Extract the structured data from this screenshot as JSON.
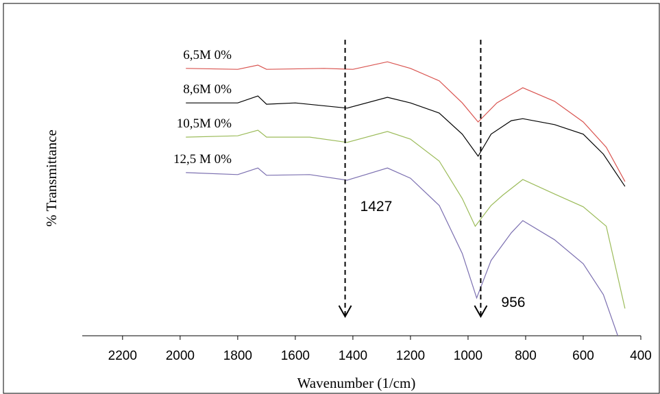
{
  "chart_data": {
    "type": "line",
    "x_label": "Wavenumber (1/cm)",
    "y_label": "% Transmittance",
    "xlim": [
      2340,
      400
    ],
    "ylim": [
      0,
      100
    ],
    "xticks": [
      2200,
      2000,
      1800,
      1600,
      1400,
      1200,
      1000,
      800,
      600,
      400
    ],
    "series": [
      {
        "name": "6,5M 0%",
        "color": "#d9534f",
        "x": [
          1980,
          1800,
          1730,
          1700,
          1500,
          1400,
          1280,
          1200,
          1100,
          1020,
          965,
          900,
          810,
          700,
          600,
          520,
          455
        ],
        "values": [
          81.3,
          81.0,
          82.3,
          81.0,
          81.3,
          81.0,
          83.3,
          81.3,
          77.5,
          70.8,
          65.0,
          70.8,
          75.4,
          71.3,
          65.0,
          57.3,
          46.9
        ]
      },
      {
        "name": "8,6M 0%",
        "color": "#000000",
        "x": [
          1980,
          1800,
          1730,
          1700,
          1600,
          1420,
          1280,
          1200,
          1100,
          1020,
          965,
          920,
          850,
          810,
          700,
          600,
          530,
          455
        ],
        "values": [
          70.8,
          70.8,
          72.9,
          70.4,
          70.8,
          69.2,
          72.5,
          70.8,
          67.7,
          61.3,
          54.6,
          61.3,
          65.4,
          66.0,
          64.2,
          61.3,
          55.2,
          45.4
        ]
      },
      {
        "name": "10,5M 0%",
        "color": "#9bbb59",
        "x": [
          1980,
          1800,
          1730,
          1700,
          1550,
          1420,
          1280,
          1200,
          1100,
          1020,
          975,
          920,
          880,
          810,
          700,
          600,
          520,
          455
        ],
        "values": [
          60.4,
          60.8,
          62.5,
          60.4,
          60.4,
          58.8,
          62.1,
          59.8,
          53.1,
          41.7,
          33.3,
          39.6,
          42.7,
          47.5,
          43.1,
          39.2,
          33.3,
          8.3
        ]
      },
      {
        "name": "12,5 M 0%",
        "color": "#7b6fb0",
        "x": [
          1980,
          1800,
          1730,
          1700,
          1550,
          1420,
          1280,
          1200,
          1100,
          1020,
          970,
          920,
          850,
          810,
          700,
          600,
          530,
          480
        ],
        "values": [
          49.6,
          49.0,
          51.0,
          48.8,
          49.0,
          47.3,
          51.0,
          47.9,
          39.6,
          25.0,
          11.5,
          22.9,
          31.3,
          35.0,
          29.2,
          21.9,
          12.5,
          0
        ]
      }
    ],
    "annotations": [
      1427,
      956
    ]
  }
}
